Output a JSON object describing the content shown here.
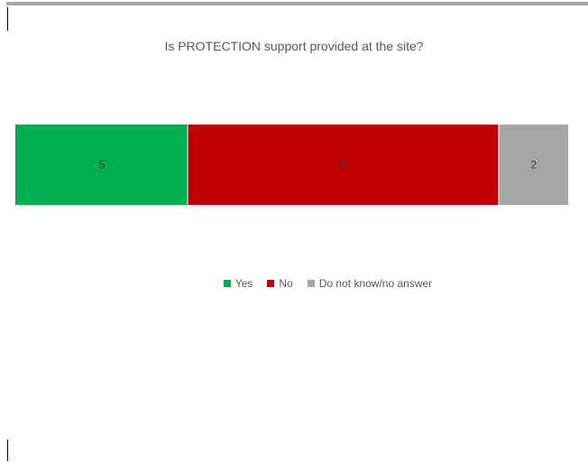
{
  "chart_data": {
    "type": "bar",
    "orientation": "horizontal",
    "stacked": true,
    "title": "Is PROTECTION support provided at the site?",
    "categories": [
      ""
    ],
    "series": [
      {
        "name": "Yes",
        "values": [
          5
        ],
        "color": "#00b050",
        "label": "5"
      },
      {
        "name": "No",
        "values": [
          9
        ],
        "color": "#c00000",
        "label": "9"
      },
      {
        "name": "Do not know/no answer",
        "values": [
          2
        ],
        "color": "#a6a6a6",
        "label": "2"
      }
    ],
    "xlim": [
      0,
      16
    ],
    "grid": false,
    "legend_position": "bottom"
  }
}
